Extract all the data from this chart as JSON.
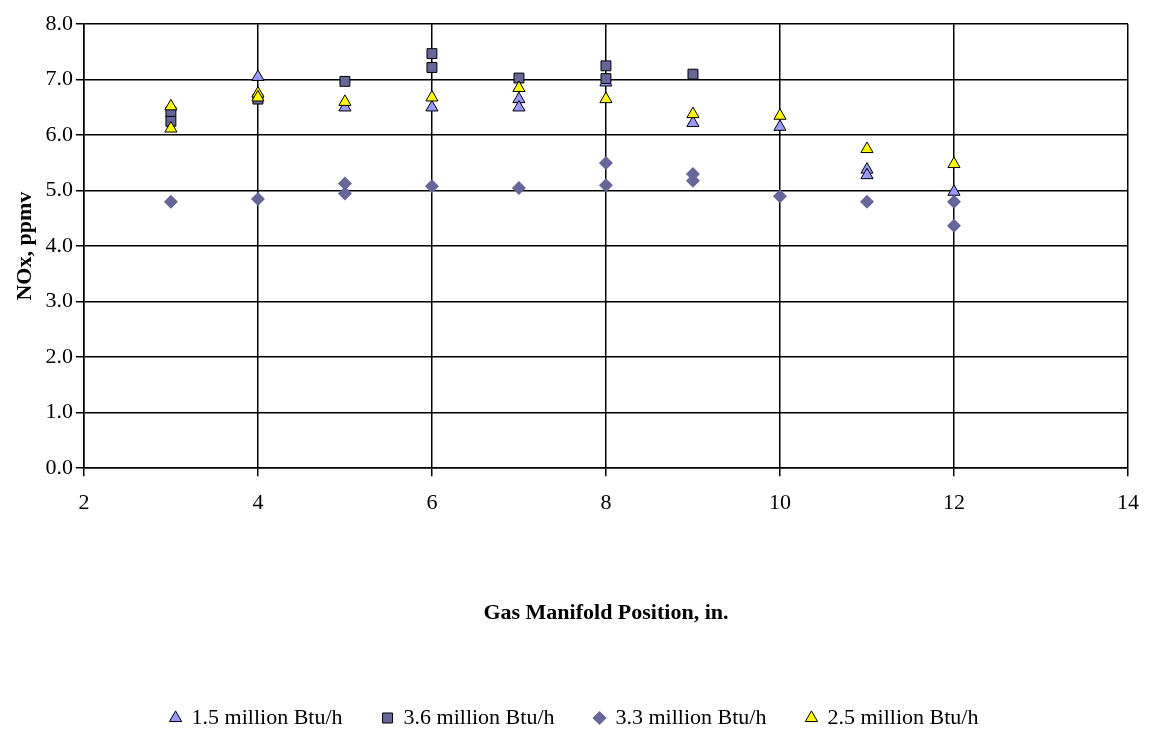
{
  "chart_data": {
    "type": "scatter",
    "xlabel": "Gas Manifold Position, in.",
    "ylabel": "NOx, ppmv",
    "xlim": [
      2,
      14
    ],
    "xticks": [
      2,
      4,
      6,
      8,
      10,
      12,
      14
    ],
    "ylim": [
      0,
      8
    ],
    "yticks": [
      {
        "value": 0,
        "label": "0.0"
      },
      {
        "value": 1,
        "label": "1.0"
      },
      {
        "value": 2,
        "label": "2.0"
      },
      {
        "value": 3,
        "label": "3.0"
      },
      {
        "value": 4,
        "label": "4.0"
      },
      {
        "value": 5,
        "label": "5.0"
      },
      {
        "value": 6,
        "label": "6.0"
      },
      {
        "value": 7,
        "label": "7.0"
      },
      {
        "value": 8,
        "label": "8.0"
      }
    ],
    "grid": true,
    "legend": "bottom",
    "series": [
      {
        "name": "1.5 million Btu/h",
        "color": "#9999ff",
        "marker": "triangle",
        "x": [
          4,
          5,
          6,
          7,
          7,
          8,
          9,
          10,
          11,
          11,
          12
        ],
        "values": [
          7.05,
          6.5,
          6.5,
          6.65,
          6.5,
          6.95,
          6.22,
          6.15,
          5.38,
          5.28,
          4.98
        ]
      },
      {
        "name": "3.6 million Btu/h",
        "color": "#666699",
        "marker": "square",
        "x": [
          3,
          3,
          4,
          5,
          6,
          6,
          7,
          8,
          8,
          9
        ],
        "values": [
          6.42,
          6.25,
          6.65,
          6.97,
          7.47,
          7.22,
          7.03,
          7.25,
          7.02,
          7.1
        ]
      },
      {
        "name": "3.3 million Btu/h",
        "color": "#666699",
        "marker": "diamond",
        "x": [
          3,
          4,
          5,
          5,
          6,
          7,
          8,
          8,
          9,
          9,
          10,
          11,
          12,
          12
        ],
        "values": [
          4.8,
          4.85,
          5.13,
          4.95,
          5.08,
          5.05,
          5.5,
          5.1,
          5.3,
          5.18,
          4.9,
          4.8,
          4.8,
          4.37
        ]
      },
      {
        "name": "2.5 million Btu/h",
        "color": "#ffff00",
        "marker": "triangle",
        "x": [
          3,
          3,
          4,
          4,
          5,
          6,
          7,
          8,
          9,
          10,
          11,
          12
        ],
        "values": [
          6.52,
          6.12,
          6.75,
          6.68,
          6.6,
          6.68,
          6.85,
          6.65,
          6.38,
          6.35,
          5.75,
          5.48
        ]
      }
    ]
  }
}
